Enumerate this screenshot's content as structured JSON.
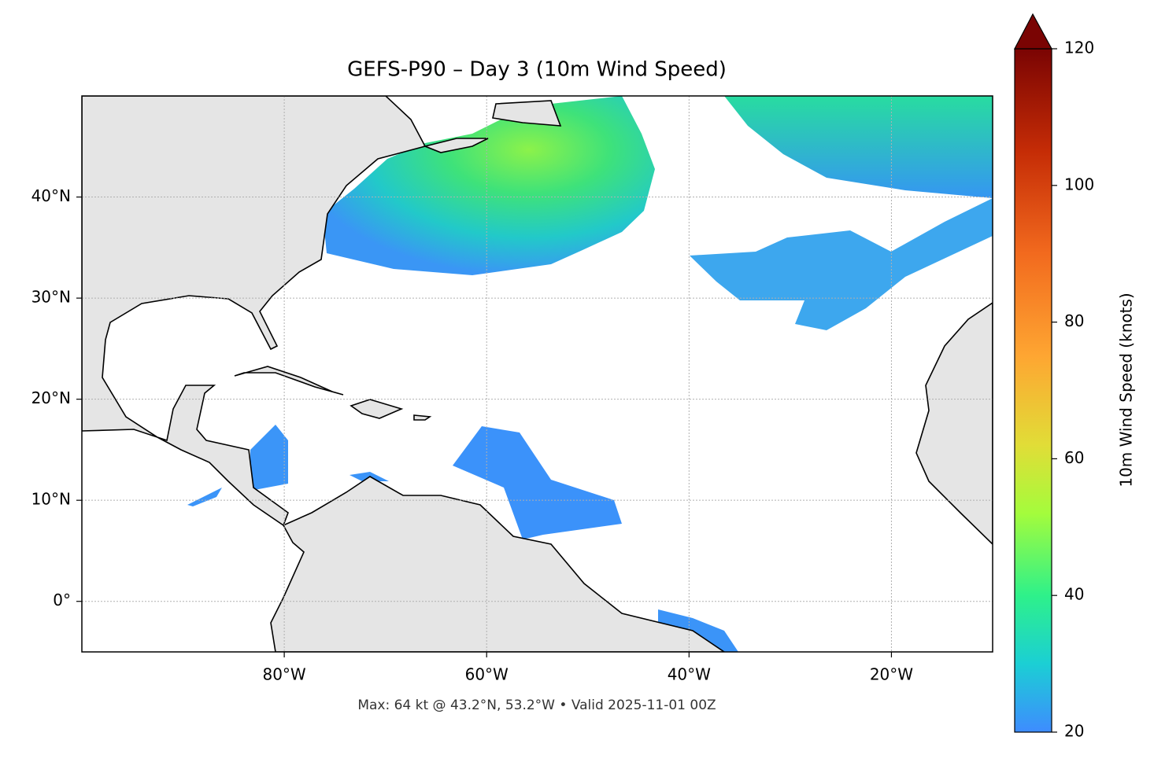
{
  "chart_data": {
    "type": "map",
    "title": "GEFS-P90 – Day 3 (10m Wind Speed)",
    "footer": "Max: 64 kt @ 43.2°N, 53.2°W • Valid 2025-11-01 00Z",
    "xlim": [
      -100,
      -10
    ],
    "ylim": [
      -5,
      50
    ],
    "xticks": [
      {
        "value": -80,
        "label": "80°W"
      },
      {
        "value": -60,
        "label": "60°W"
      },
      {
        "value": -40,
        "label": "40°W"
      },
      {
        "value": -20,
        "label": "20°W"
      }
    ],
    "yticks": [
      {
        "value": 0,
        "label": "0°"
      },
      {
        "value": 10,
        "label": "10°N"
      },
      {
        "value": 20,
        "label": "20°N"
      },
      {
        "value": 30,
        "label": "30°N"
      },
      {
        "value": 40,
        "label": "40°N"
      }
    ],
    "grid": true,
    "colorbar": {
      "label": "10m Wind Speed (knots)",
      "lim": [
        20,
        120
      ],
      "ticks": [
        20,
        40,
        60,
        80,
        100,
        120
      ]
    }
  }
}
